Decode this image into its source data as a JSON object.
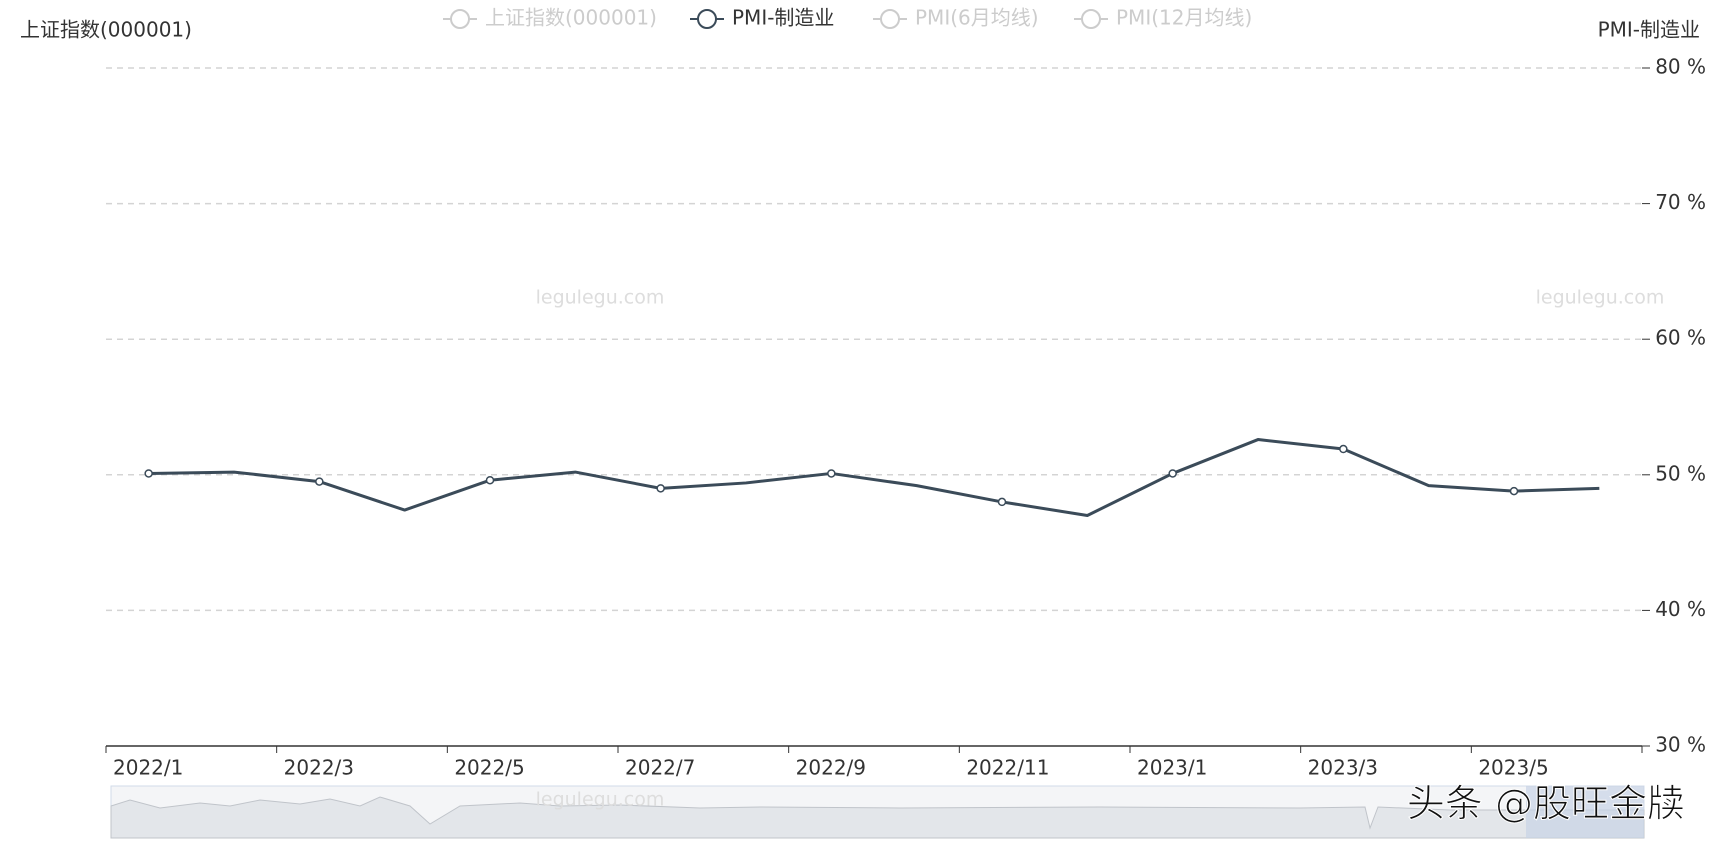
{
  "chart_data": {
    "type": "line",
    "legend": [
      {
        "name": "上证指数(000001)",
        "active": false
      },
      {
        "name": "PMI-制造业",
        "active": true
      },
      {
        "name": "PMI(6月均线)",
        "active": false
      },
      {
        "name": "PMI(12月均线)",
        "active": false
      }
    ],
    "y_label": "上证指数(000001)",
    "y2_label": "PMI-制造业",
    "categories": [
      "2022/1",
      null,
      "2022/3",
      null,
      "2022/5",
      null,
      "2022/7",
      null,
      "2022/9",
      null,
      "2022/11",
      null,
      "2023/1",
      null,
      "2023/3",
      null,
      "2023/5",
      null
    ],
    "series": [
      {
        "name": "PMI-制造业",
        "color": "#3b4b59",
        "axis": "y2",
        "values": [
          50.1,
          50.2,
          49.5,
          47.4,
          49.6,
          50.2,
          49.0,
          49.4,
          50.1,
          49.2,
          48.0,
          47.0,
          50.1,
          52.6,
          51.9,
          49.2,
          48.8,
          49.0
        ]
      }
    ],
    "y2lim": [
      30,
      80
    ],
    "y2ticks": [
      {
        "value": 30,
        "label": "30 %"
      },
      {
        "value": 40,
        "label": "40 %"
      },
      {
        "value": 50,
        "label": "50 %"
      },
      {
        "value": 60,
        "label": "60 %"
      },
      {
        "value": 70,
        "label": "70 %"
      },
      {
        "value": 80,
        "label": "80 %"
      }
    ],
    "grid": true,
    "watermarks": [
      "legulegu.com",
      "legulegu.com",
      "legulegu.com",
      "头条 @股旺金牍"
    ]
  }
}
